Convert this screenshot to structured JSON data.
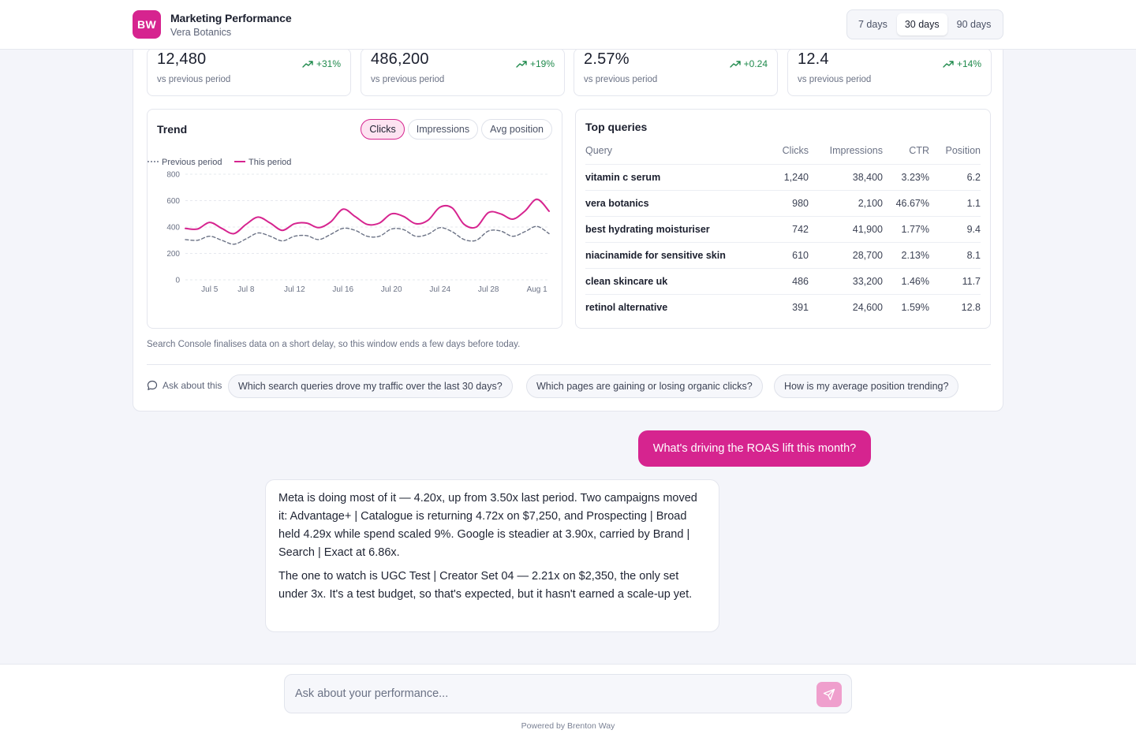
{
  "header": {
    "logo_text": "BW",
    "title": "Marketing Performance",
    "subtitle": "Vera Botanics",
    "ranges": [
      {
        "label": "7 days",
        "active": false
      },
      {
        "label": "30 days",
        "active": true
      },
      {
        "label": "90 days",
        "active": false
      }
    ]
  },
  "kpis": [
    {
      "value": "12,480",
      "delta": "+31%",
      "sub": "vs previous period"
    },
    {
      "value": "486,200",
      "delta": "+19%",
      "sub": "vs previous period"
    },
    {
      "value": "2.57%",
      "delta": "+0.24",
      "sub": "vs previous period"
    },
    {
      "value": "12.4",
      "delta": "+14%",
      "sub": "vs previous period"
    }
  ],
  "trend": {
    "title": "Trend",
    "tabs": [
      {
        "label": "Clicks",
        "active": true
      },
      {
        "label": "Impressions",
        "active": false
      },
      {
        "label": "Avg position",
        "active": false
      }
    ]
  },
  "chart_data": {
    "type": "line",
    "title": "Trend",
    "x": [
      "Jul 3",
      "Jul 4",
      "Jul 5",
      "Jul 6",
      "Jul 7",
      "Jul 8",
      "Jul 9",
      "Jul 10",
      "Jul 11",
      "Jul 12",
      "Jul 13",
      "Jul 14",
      "Jul 15",
      "Jul 16",
      "Jul 17",
      "Jul 18",
      "Jul 19",
      "Jul 20",
      "Jul 21",
      "Jul 22",
      "Jul 23",
      "Jul 24",
      "Jul 25",
      "Jul 26",
      "Jul 27",
      "Jul 28",
      "Jul 29",
      "Jul 30",
      "Jul 31",
      "Aug 1",
      "Aug 2"
    ],
    "x_ticks": [
      "Jul 5",
      "Jul 8",
      "Jul 12",
      "Jul 16",
      "Jul 20",
      "Jul 24",
      "Jul 28",
      "Aug 1"
    ],
    "series": [
      {
        "name": "Previous period",
        "style": "dotted",
        "color": "#6b7285",
        "values": [
          305,
          300,
          330,
          300,
          270,
          310,
          355,
          330,
          295,
          330,
          335,
          305,
          345,
          390,
          375,
          330,
          330,
          385,
          380,
          330,
          345,
          395,
          365,
          305,
          300,
          370,
          370,
          330,
          365,
          405,
          350
        ]
      },
      {
        "name": "This period",
        "style": "solid",
        "color": "#d6248f",
        "values": [
          390,
          385,
          435,
          390,
          350,
          420,
          475,
          430,
          375,
          425,
          430,
          395,
          440,
          535,
          480,
          420,
          430,
          500,
          480,
          425,
          450,
          550,
          545,
          420,
          400,
          510,
          500,
          460,
          520,
          610,
          520
        ]
      }
    ],
    "ylim": [
      0,
      800
    ],
    "y_ticks": [
      0,
      200,
      400,
      600,
      800
    ],
    "legend": "top-left",
    "grid": true
  },
  "queries": {
    "title": "Top queries",
    "columns": [
      "Query",
      "Clicks",
      "Impressions",
      "CTR",
      "Position"
    ],
    "rows": [
      [
        "vitamin c serum",
        "1,240",
        "38,400",
        "3.23%",
        "6.2"
      ],
      [
        "vera botanics",
        "980",
        "2,100",
        "46.67%",
        "1.1"
      ],
      [
        "best hydrating moisturiser",
        "742",
        "41,900",
        "1.77%",
        "9.4"
      ],
      [
        "niacinamide for sensitive skin",
        "610",
        "28,700",
        "2.13%",
        "8.1"
      ],
      [
        "clean skincare uk",
        "486",
        "33,200",
        "1.46%",
        "11.7"
      ],
      [
        "retinol alternative",
        "391",
        "24,600",
        "1.59%",
        "12.8"
      ]
    ]
  },
  "footnote": "Search Console finalises data on a short delay, so this window ends a few days before today.",
  "ask": {
    "label": "Ask about this",
    "suggestions": [
      "Which search queries drove my traffic over the last 30 days?",
      "Which pages are gaining or losing organic clicks?",
      "How is my average position trending?"
    ]
  },
  "chat": {
    "user_message": "What's driving the ROAS lift this month?",
    "assistant_paragraphs": [
      "Meta is doing most of it — 4.20x, up from 3.50x last period. Two campaigns moved it: Advantage+ | Catalogue is returning 4.72x on $7,250, and Prospecting | Broad held 4.29x while spend scaled 9%. Google is steadier at 3.90x, carried by Brand | Search | Exact at 6.86x.",
      "The one to watch is UGC Test | Creator Set 04 — 2.21x on $2,350, the only set under 3x. It's a test budget, so that's expected, but it hasn't earned a scale-up yet."
    ]
  },
  "composer": {
    "placeholder": "Ask about your performance...",
    "powered_by": "Powered by Brenton Way"
  },
  "colors": {
    "accent": "#d6248f",
    "positive": "#1f8a4c",
    "previous": "#6b7285"
  }
}
